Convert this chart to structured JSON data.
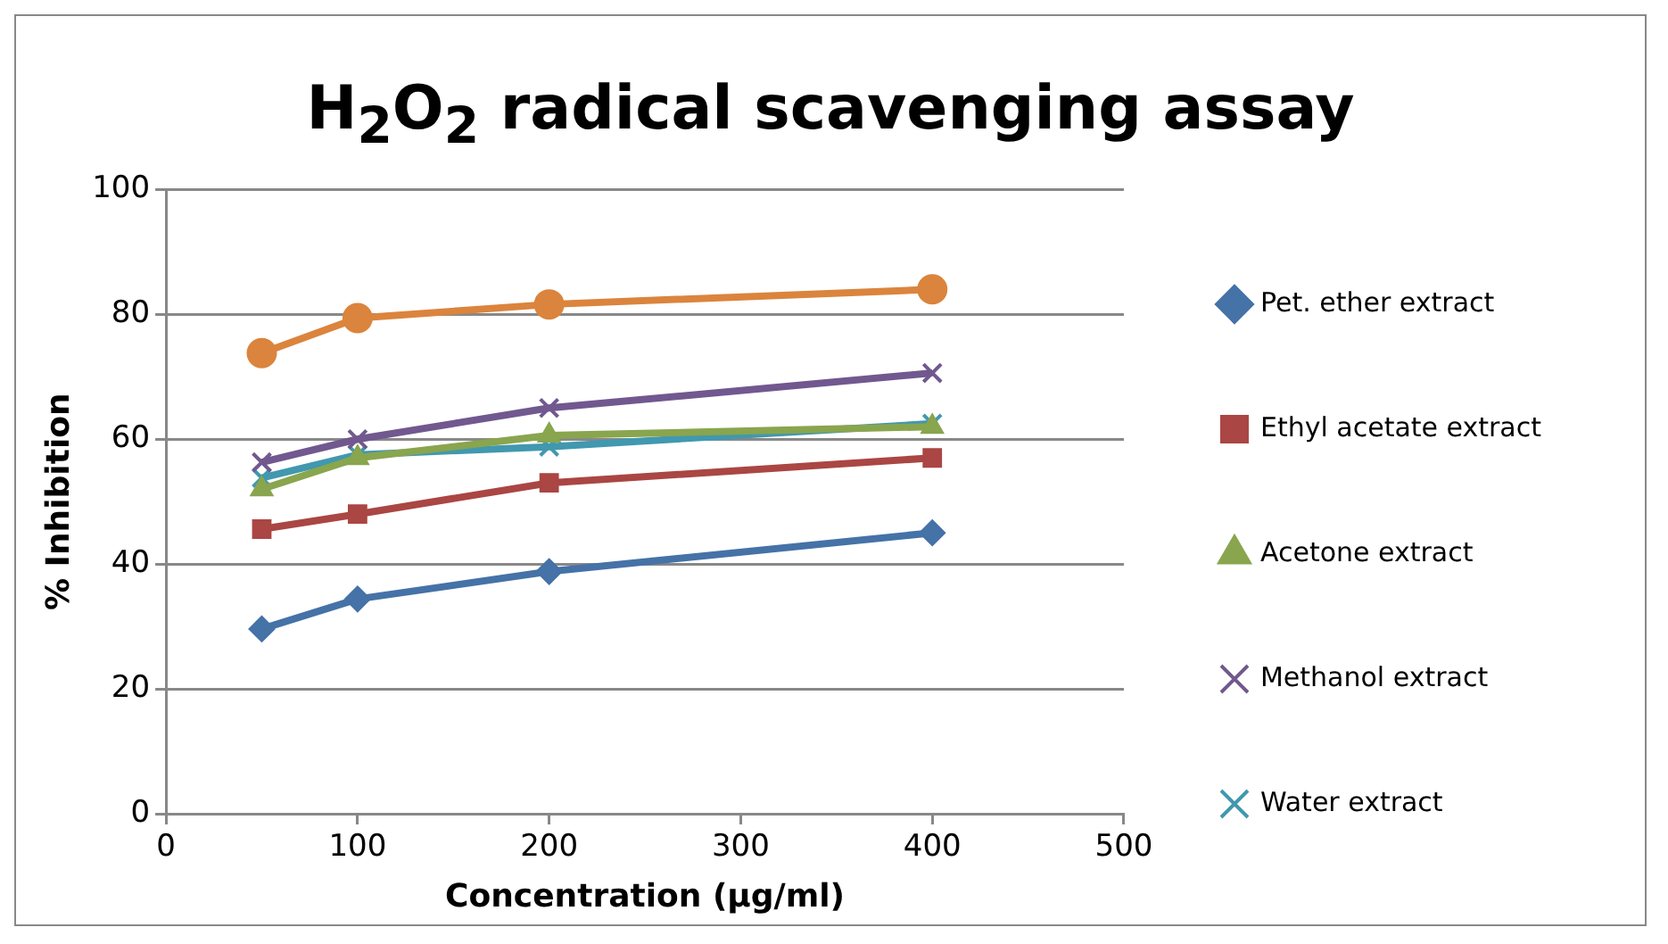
{
  "chart_data": {
    "type": "line",
    "title": "H$_{2}$O$_{2}$ radical scavenging assay",
    "xlabel": "Concentration (µg/ml)",
    "ylabel": "% Inhibition",
    "x": [
      50,
      100,
      200,
      400
    ],
    "series": [
      {
        "name": "Pet. ether extract",
        "color": "#4572a7",
        "marker": "diamond",
        "values": [
          29.6,
          34.4,
          38.8,
          45
        ]
      },
      {
        "name": "Ethyl acetate extract",
        "color": "#aa4643",
        "marker": "square",
        "values": [
          45.6,
          48,
          53,
          57
        ]
      },
      {
        "name": "Acetone extract",
        "color": "#89a54e",
        "marker": "triangle",
        "values": [
          52,
          57,
          60.6,
          62
        ]
      },
      {
        "name": "Methanol extract",
        "color": "#71588f",
        "marker": "cross",
        "values": [
          56.3,
          60,
          65,
          70.6
        ]
      },
      {
        "name": "Water extract",
        "color": "#4198af",
        "marker": "cross",
        "values": [
          53.8,
          57.5,
          58.8,
          62.5
        ]
      },
      {
        "color": "#db843d",
        "marker": "circle",
        "values": [
          73.8,
          79.4,
          81.6,
          84
        ]
      }
    ],
    "xlim": [
      0,
      500
    ],
    "xticks": [
      0,
      100,
      200,
      300,
      400,
      500
    ],
    "ylim": [
      0,
      100
    ],
    "yticks": [
      0,
      20,
      40,
      60,
      80,
      100
    ],
    "grid": "y",
    "legend": "right"
  }
}
